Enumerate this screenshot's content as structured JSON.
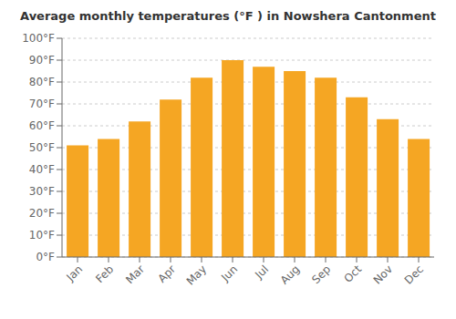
{
  "chart_data": {
    "type": "bar",
    "title": "Average monthly temperatures (°F ) in Nowshera Cantonment",
    "categories": [
      "Jan",
      "Feb",
      "Mar",
      "Apr",
      "May",
      "Jun",
      "Jul",
      "Aug",
      "Sep",
      "Oct",
      "Nov",
      "Dec"
    ],
    "values": [
      51,
      54,
      62,
      72,
      82,
      90,
      87,
      85,
      82,
      73,
      63,
      54
    ],
    "color": "#F5A623",
    "ylim": [
      0,
      100
    ],
    "yticks": [
      {
        "value": 0,
        "label": "0°F"
      },
      {
        "value": 10,
        "label": "10°F"
      },
      {
        "value": 20,
        "label": "20°F"
      },
      {
        "value": 30,
        "label": "30°F"
      },
      {
        "value": 40,
        "label": "40°F"
      },
      {
        "value": 50,
        "label": "50°F"
      },
      {
        "value": 60,
        "label": "60°F"
      },
      {
        "value": 70,
        "label": "70°F"
      },
      {
        "value": 80,
        "label": "80°F"
      },
      {
        "value": 90,
        "label": "90°F"
      },
      {
        "value": 100,
        "label": "100°F"
      }
    ],
    "grid": true
  }
}
